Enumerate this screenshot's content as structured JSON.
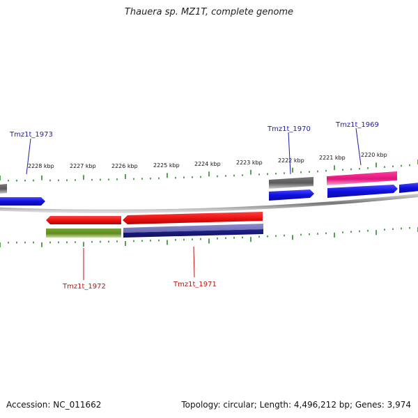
{
  "title": "Thauera sp. MZ1T, complete genome",
  "footer": {
    "accession": "Accession: NC_011662",
    "topology": "Topology: circular; Length: 4,496,212 bp; Genes: 3,974"
  },
  "colors": {
    "backbone": "#888888",
    "tick": "#2a8a2a",
    "forward_cds": "#1010e0",
    "gene_gray": "#5a5a5a",
    "gene_magenta": "#e0157e",
    "reverse_cds": "#e81010",
    "olive": "#5f8a1e",
    "navy": "#1a1a80",
    "slate": "#6a6ab0",
    "label_blue": "#1a1aa8",
    "label_red": "#c01010"
  },
  "chart_data": {
    "type": "genome-map",
    "title": "Thauera sp. MZ1T, complete genome",
    "unit": "kbp",
    "tick_labels": [
      "2228 kbp",
      "2227 kbp",
      "2226 kbp",
      "2225 kbp",
      "2224 kbp",
      "2223 kbp",
      "2222 kbp",
      "2221 kbp",
      "2220 kbp"
    ],
    "gene_labels": {
      "forward": [
        "Tmz1t_1973",
        "Tmz1t_1970",
        "Tmz1t_1969"
      ],
      "reverse": [
        "Tmz1t_1972",
        "Tmz1t_1971"
      ]
    }
  }
}
